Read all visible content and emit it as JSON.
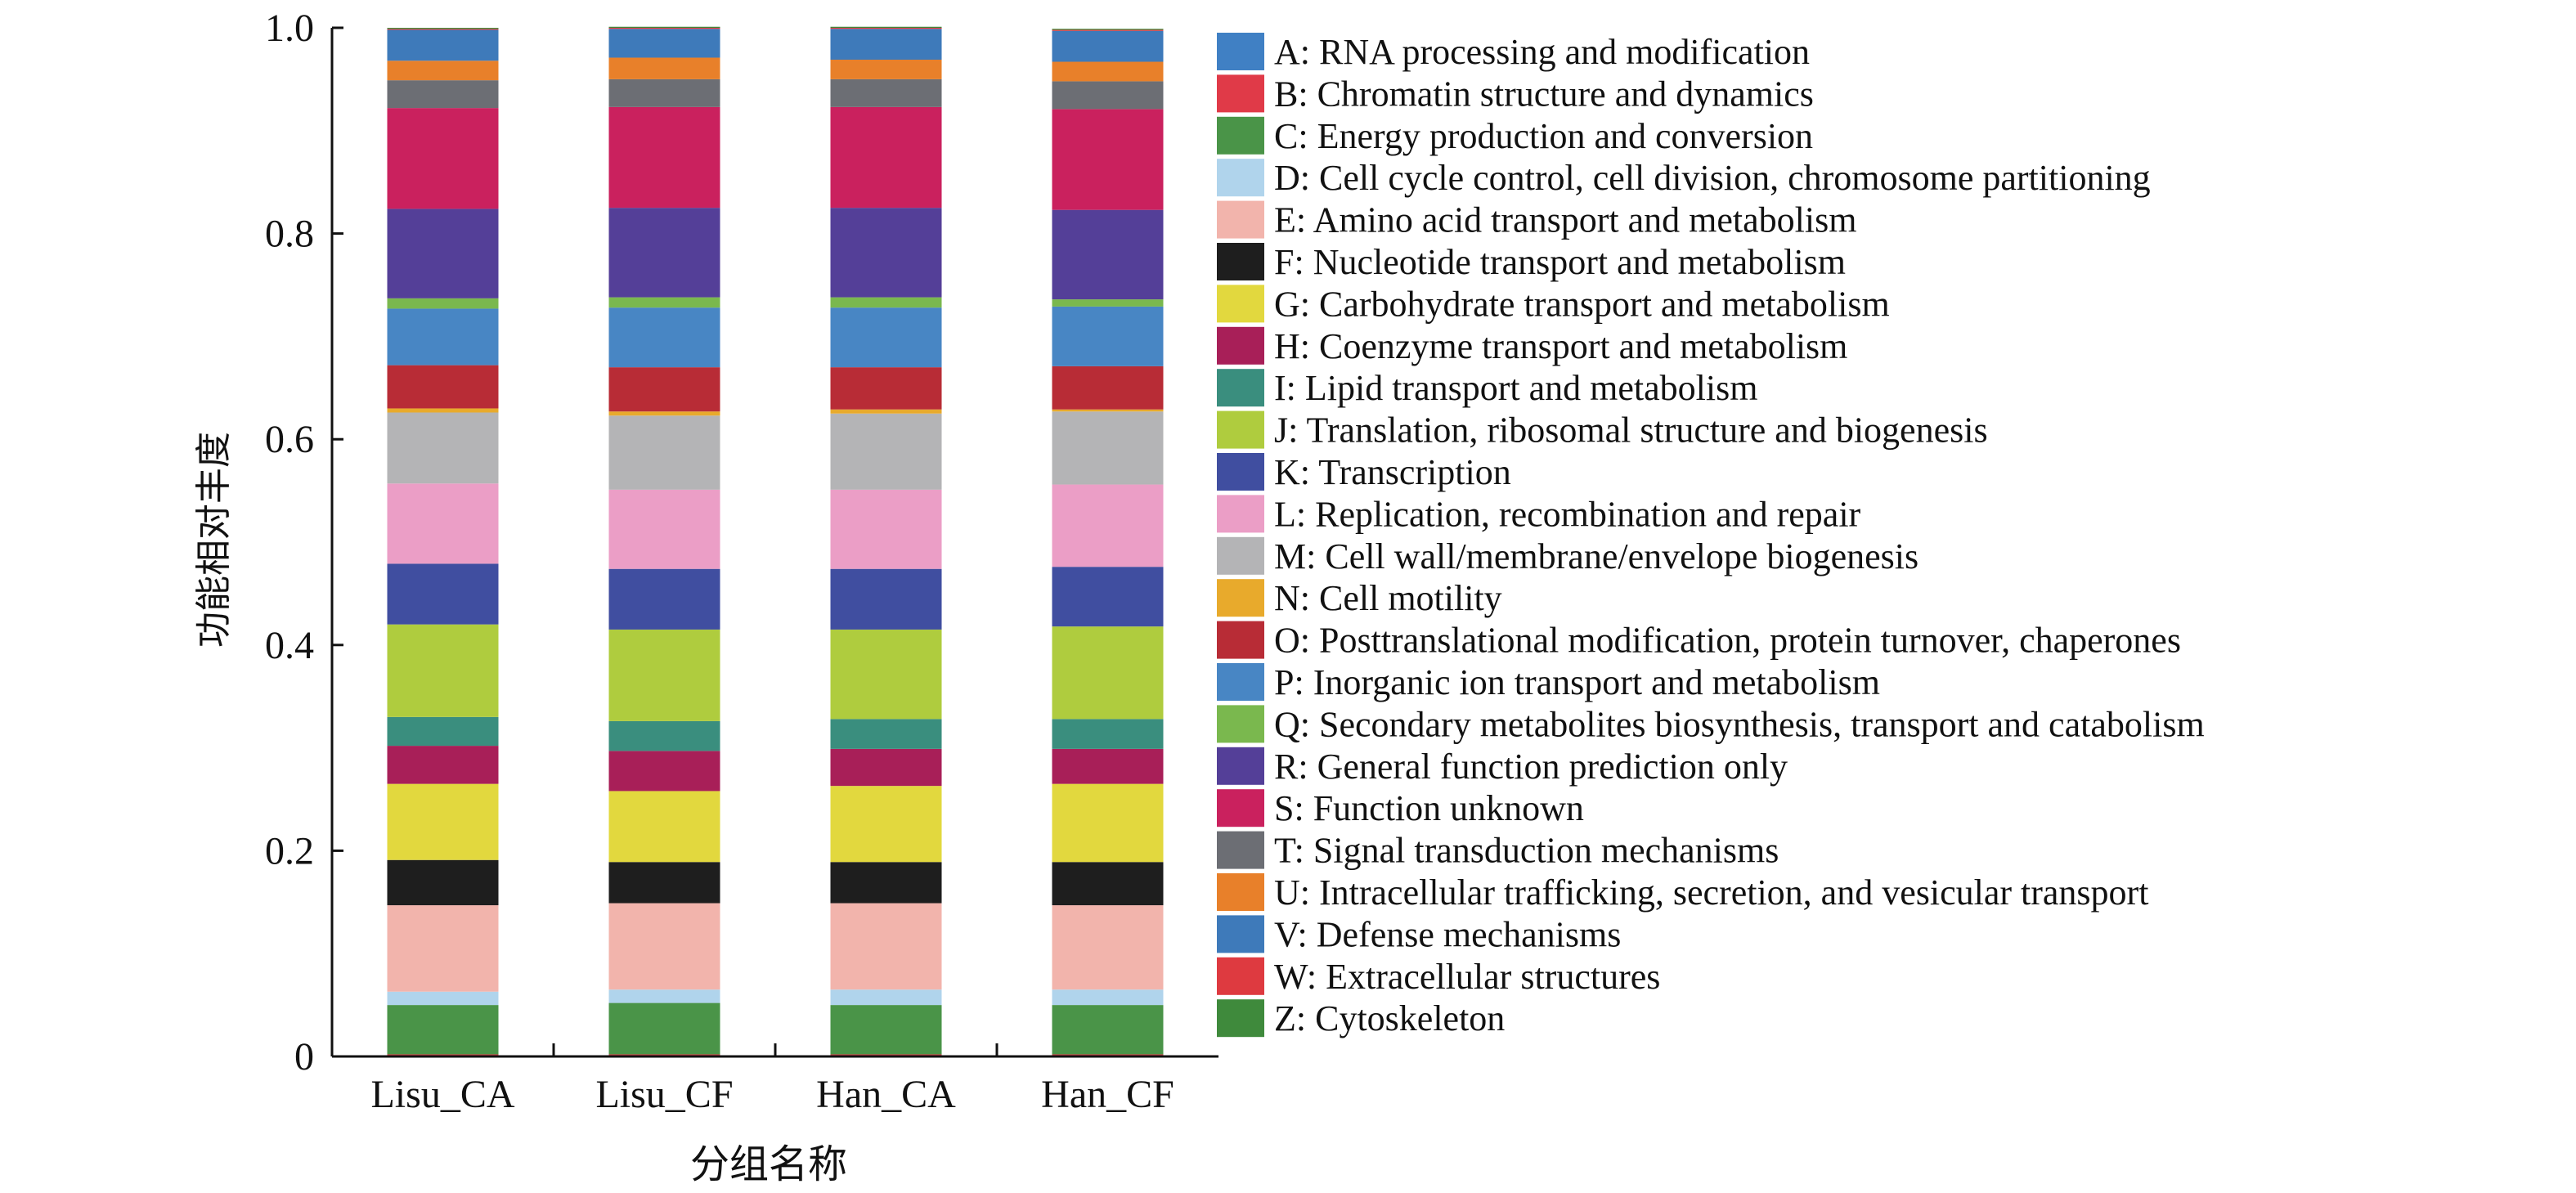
{
  "chart_data": {
    "type": "bar",
    "stacked": true,
    "title": "",
    "xlabel": "分组名称",
    "ylabel": "功能相对丰度",
    "ylim": [
      0,
      1.0
    ],
    "yticks": [
      "0",
      "0.2",
      "0.4",
      "0.6",
      "0.8",
      "1.0"
    ],
    "grid": false,
    "legend_position": "right",
    "categories": [
      "Lisu_CA",
      "Lisu_CF",
      "Han_CA",
      "Han_CF"
    ],
    "series": [
      {
        "name": "A: RNA processing and modification",
        "color": "#4080c4",
        "values": [
          0.001,
          0.001,
          0.001,
          0.001
        ]
      },
      {
        "name": "B: Chromatin structure and dynamics",
        "color": "#e03a48",
        "values": [
          0.001,
          0.001,
          0.001,
          0.001
        ]
      },
      {
        "name": "C: Energy production and conversion",
        "color": "#4a9448",
        "values": [
          0.048,
          0.05,
          0.048,
          0.048
        ]
      },
      {
        "name": "D: Cell cycle control, cell division, chromosome partitioning",
        "color": "#b0d4ec",
        "values": [
          0.013,
          0.013,
          0.015,
          0.015
        ]
      },
      {
        "name": "E: Amino acid transport and metabolism",
        "color": "#f2b4ac",
        "values": [
          0.084,
          0.084,
          0.084,
          0.082
        ]
      },
      {
        "name": "F: Nucleotide transport and metabolism",
        "color": "#1e1e1e",
        "values": [
          0.044,
          0.04,
          0.04,
          0.042
        ]
      },
      {
        "name": "G: Carbohydrate transport and metabolism",
        "color": "#e2d83e",
        "values": [
          0.074,
          0.069,
          0.074,
          0.076
        ]
      },
      {
        "name": "H: Coenzyme transport and metabolism",
        "color": "#a81f58",
        "values": [
          0.037,
          0.039,
          0.036,
          0.034
        ]
      },
      {
        "name": "I: Lipid transport and metabolism",
        "color": "#3a8e7e",
        "values": [
          0.028,
          0.029,
          0.029,
          0.029
        ]
      },
      {
        "name": "J: Translation, ribosomal structure and biogenesis",
        "color": "#afcc3e",
        "values": [
          0.09,
          0.089,
          0.087,
          0.09
        ]
      },
      {
        "name": "K: Transcription",
        "color": "#404ea0",
        "values": [
          0.059,
          0.059,
          0.059,
          0.058
        ]
      },
      {
        "name": "L: Replication, recombination and repair",
        "color": "#eb9ec6",
        "values": [
          0.078,
          0.077,
          0.077,
          0.08
        ]
      },
      {
        "name": "M: Cell wall/membrane/envelope biogenesis",
        "color": "#b4b4b6",
        "values": [
          0.069,
          0.072,
          0.074,
          0.071
        ]
      },
      {
        "name": "N: Cell motility",
        "color": "#e8aa2c",
        "values": [
          0.004,
          0.004,
          0.004,
          0.002
        ]
      },
      {
        "name": "O: Posttranslational modification, protein turnover, chaperones",
        "color": "#b82c36",
        "values": [
          0.042,
          0.043,
          0.041,
          0.042
        ]
      },
      {
        "name": "P: Inorganic ion transport and metabolism",
        "color": "#4886c4",
        "values": [
          0.055,
          0.058,
          0.058,
          0.058
        ]
      },
      {
        "name": "Q: Secondary metabolites biosynthesis, transport and catabolism",
        "color": "#7ab84e",
        "values": [
          0.01,
          0.01,
          0.01,
          0.007
        ]
      },
      {
        "name": "R: General function prediction only",
        "color": "#543f98",
        "values": [
          0.087,
          0.087,
          0.087,
          0.087
        ]
      },
      {
        "name": "S: Function unknown",
        "color": "#ca215e",
        "values": [
          0.098,
          0.098,
          0.098,
          0.098
        ]
      },
      {
        "name": "T: Signal transduction mechanisms",
        "color": "#6c6e74",
        "values": [
          0.027,
          0.027,
          0.027,
          0.027
        ]
      },
      {
        "name": "U: Intracellular trafficking, secretion, and vesicular transport",
        "color": "#e8802a",
        "values": [
          0.019,
          0.021,
          0.019,
          0.019
        ]
      },
      {
        "name": "V: Defense mechanisms",
        "color": "#3e7aba",
        "values": [
          0.03,
          0.028,
          0.03,
          0.03
        ]
      },
      {
        "name": "W: Extracellular structures",
        "color": "#de3a40",
        "values": [
          0.001,
          0.001,
          0.001,
          0.001
        ]
      },
      {
        "name": "Z: Cytoskeleton",
        "color": "#3f8a3c",
        "values": [
          0.001,
          0.001,
          0.001,
          0.001
        ]
      }
    ]
  }
}
